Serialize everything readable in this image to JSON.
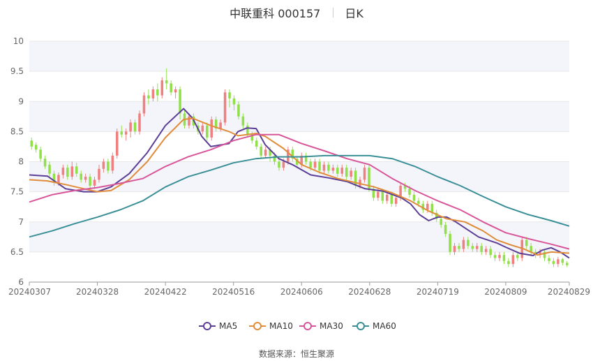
{
  "header": {
    "title": "中联重科 000157",
    "period": "日K"
  },
  "source_label": "数据来源：恒生聚源",
  "colors": {
    "up": "#f08080",
    "down": "#91e04a",
    "ma5": "#5b3e96",
    "ma10": "#e08c3a",
    "ma30": "#d8559a",
    "ma60": "#3a8f96",
    "band": "#f4f5fb",
    "grid": "#e8e8e8"
  },
  "chart_data": {
    "type": "candlestick",
    "title": "中联重科 000157",
    "subtitle": "日K",
    "xlabel": "",
    "ylabel": "",
    "ylim": [
      6,
      10
    ],
    "y_ticks": [
      6,
      6.5,
      7,
      7.5,
      8,
      8.5,
      9,
      9.5,
      10
    ],
    "y_tick_labels": [
      "6",
      "6.5",
      "7",
      "7.5",
      "8",
      "8.5",
      "9",
      "9.5",
      "10"
    ],
    "x_tick_labels": [
      "20240307",
      "20240328",
      "20240422",
      "20240516",
      "20240606",
      "20240628",
      "20240719",
      "20240809",
      "20240829"
    ],
    "x_tick_index": [
      0,
      15,
      30,
      45,
      60,
      75,
      90,
      105,
      119
    ],
    "legend_position": "bottom",
    "series": [
      {
        "name": "MA5",
        "points": [
          [
            0,
            7.78
          ],
          [
            4,
            7.76
          ],
          [
            8,
            7.55
          ],
          [
            12,
            7.5
          ],
          [
            15,
            7.5
          ],
          [
            18,
            7.58
          ],
          [
            22,
            7.8
          ],
          [
            26,
            8.15
          ],
          [
            30,
            8.6
          ],
          [
            34,
            8.88
          ],
          [
            36,
            8.72
          ],
          [
            38,
            8.42
          ],
          [
            40,
            8.25
          ],
          [
            44,
            8.3
          ],
          [
            46,
            8.5
          ],
          [
            48,
            8.56
          ],
          [
            50,
            8.55
          ],
          [
            52,
            8.28
          ],
          [
            55,
            8.05
          ],
          [
            58,
            7.95
          ],
          [
            62,
            7.78
          ],
          [
            66,
            7.73
          ],
          [
            70,
            7.67
          ],
          [
            74,
            7.55
          ],
          [
            78,
            7.51
          ],
          [
            82,
            7.4
          ],
          [
            84,
            7.3
          ],
          [
            86,
            7.12
          ],
          [
            88,
            7.02
          ],
          [
            90,
            7.08
          ],
          [
            92,
            7.08
          ],
          [
            94,
            7.0
          ],
          [
            96,
            6.9
          ],
          [
            99,
            6.75
          ],
          [
            103,
            6.65
          ],
          [
            105,
            6.58
          ],
          [
            108,
            6.48
          ],
          [
            111,
            6.44
          ],
          [
            113,
            6.53
          ],
          [
            115,
            6.57
          ],
          [
            117,
            6.5
          ],
          [
            119,
            6.4
          ]
        ]
      },
      {
        "name": "MA10",
        "points": [
          [
            0,
            7.7
          ],
          [
            4,
            7.68
          ],
          [
            8,
            7.62
          ],
          [
            12,
            7.55
          ],
          [
            15,
            7.5
          ],
          [
            18,
            7.52
          ],
          [
            22,
            7.7
          ],
          [
            26,
            8.0
          ],
          [
            30,
            8.4
          ],
          [
            34,
            8.7
          ],
          [
            36,
            8.72
          ],
          [
            40,
            8.6
          ],
          [
            44,
            8.5
          ],
          [
            46,
            8.43
          ],
          [
            48,
            8.45
          ],
          [
            50,
            8.47
          ],
          [
            52,
            8.42
          ],
          [
            56,
            8.22
          ],
          [
            60,
            7.95
          ],
          [
            64,
            7.82
          ],
          [
            68,
            7.72
          ],
          [
            72,
            7.65
          ],
          [
            76,
            7.58
          ],
          [
            80,
            7.48
          ],
          [
            84,
            7.35
          ],
          [
            88,
            7.18
          ],
          [
            92,
            7.05
          ],
          [
            96,
            7.0
          ],
          [
            100,
            6.85
          ],
          [
            103,
            6.7
          ],
          [
            106,
            6.62
          ],
          [
            109,
            6.55
          ],
          [
            112,
            6.45
          ],
          [
            115,
            6.5
          ],
          [
            119,
            6.48
          ]
        ]
      },
      {
        "name": "MA30",
        "points": [
          [
            0,
            7.33
          ],
          [
            5,
            7.45
          ],
          [
            10,
            7.52
          ],
          [
            15,
            7.57
          ],
          [
            20,
            7.64
          ],
          [
            25,
            7.72
          ],
          [
            30,
            7.92
          ],
          [
            35,
            8.08
          ],
          [
            40,
            8.2
          ],
          [
            45,
            8.35
          ],
          [
            50,
            8.45
          ],
          [
            55,
            8.45
          ],
          [
            60,
            8.3
          ],
          [
            65,
            8.18
          ],
          [
            70,
            8.05
          ],
          [
            75,
            7.95
          ],
          [
            80,
            7.72
          ],
          [
            85,
            7.52
          ],
          [
            90,
            7.35
          ],
          [
            95,
            7.2
          ],
          [
            100,
            7.0
          ],
          [
            105,
            6.82
          ],
          [
            110,
            6.72
          ],
          [
            115,
            6.63
          ],
          [
            119,
            6.55
          ]
        ]
      },
      {
        "name": "MA60",
        "points": [
          [
            0,
            6.75
          ],
          [
            5,
            6.85
          ],
          [
            10,
            6.97
          ],
          [
            15,
            7.08
          ],
          [
            20,
            7.2
          ],
          [
            25,
            7.35
          ],
          [
            30,
            7.58
          ],
          [
            35,
            7.75
          ],
          [
            40,
            7.86
          ],
          [
            45,
            7.98
          ],
          [
            50,
            8.05
          ],
          [
            55,
            8.08
          ],
          [
            60,
            8.08
          ],
          [
            65,
            8.1
          ],
          [
            70,
            8.1
          ],
          [
            75,
            8.1
          ],
          [
            80,
            8.05
          ],
          [
            85,
            7.92
          ],
          [
            90,
            7.75
          ],
          [
            95,
            7.6
          ],
          [
            100,
            7.42
          ],
          [
            105,
            7.25
          ],
          [
            110,
            7.12
          ],
          [
            115,
            7.02
          ],
          [
            119,
            6.93
          ]
        ]
      }
    ],
    "candles": [
      [
        8.35,
        8.25,
        8.4,
        8.2
      ],
      [
        8.28,
        8.2,
        8.32,
        8.15
      ],
      [
        8.2,
        8.05,
        8.25,
        8.0
      ],
      [
        8.05,
        7.92,
        8.1,
        7.88
      ],
      [
        7.95,
        7.8,
        8.0,
        7.75
      ],
      [
        7.8,
        7.65,
        7.85,
        7.6
      ],
      [
        7.65,
        7.78,
        7.82,
        7.6
      ],
      [
        7.78,
        7.9,
        7.95,
        7.72
      ],
      [
        7.9,
        7.75,
        7.95,
        7.7
      ],
      [
        7.75,
        7.92,
        8.0,
        7.7
      ],
      [
        7.92,
        7.8,
        7.98,
        7.75
      ],
      [
        7.8,
        7.7,
        7.85,
        7.65
      ],
      [
        7.7,
        7.75,
        7.8,
        7.65
      ],
      [
        7.75,
        7.6,
        7.8,
        7.55
      ],
      [
        7.6,
        7.7,
        7.75,
        7.55
      ],
      [
        7.7,
        7.88,
        7.95,
        7.65
      ],
      [
        7.88,
        8.0,
        8.05,
        7.82
      ],
      [
        8.0,
        7.85,
        8.05,
        7.8
      ],
      [
        7.85,
        8.1,
        8.15,
        7.8
      ],
      [
        8.1,
        8.5,
        8.55,
        8.05
      ],
      [
        8.5,
        8.45,
        8.6,
        8.4
      ],
      [
        8.45,
        8.5,
        8.55,
        8.35
      ],
      [
        8.5,
        8.65,
        8.7,
        8.4
      ],
      [
        8.65,
        8.5,
        8.7,
        8.45
      ],
      [
        8.5,
        8.8,
        8.85,
        8.45
      ],
      [
        8.8,
        9.1,
        9.15,
        8.75
      ],
      [
        9.1,
        9.05,
        9.2,
        8.95
      ],
      [
        9.05,
        9.2,
        9.25,
        9.0
      ],
      [
        9.2,
        9.1,
        9.3,
        9.0
      ],
      [
        9.1,
        9.35,
        9.4,
        9.05
      ],
      [
        9.35,
        9.3,
        9.55,
        9.2
      ],
      [
        9.3,
        9.15,
        9.35,
        9.1
      ],
      [
        9.15,
        9.2,
        9.25,
        9.05
      ],
      [
        9.2,
        8.8,
        9.25,
        8.7
      ],
      [
        8.8,
        8.6,
        8.85,
        8.55
      ],
      [
        8.6,
        8.75,
        8.8,
        8.55
      ],
      [
        8.75,
        8.6,
        8.8,
        8.55
      ],
      [
        8.6,
        8.5,
        8.65,
        8.45
      ],
      [
        8.5,
        8.6,
        8.65,
        8.45
      ],
      [
        8.6,
        8.4,
        8.65,
        8.35
      ],
      [
        8.4,
        8.7,
        8.75,
        8.35
      ],
      [
        8.7,
        8.55,
        8.75,
        8.5
      ],
      [
        8.55,
        8.65,
        8.7,
        8.5
      ],
      [
        8.65,
        9.15,
        9.2,
        8.6
      ],
      [
        9.15,
        9.05,
        9.2,
        8.9
      ],
      [
        9.05,
        8.95,
        9.1,
        8.85
      ],
      [
        8.95,
        8.75,
        9.0,
        8.7
      ],
      [
        8.75,
        8.6,
        8.8,
        8.55
      ],
      [
        8.6,
        8.45,
        8.65,
        8.4
      ],
      [
        8.45,
        8.35,
        8.5,
        8.3
      ],
      [
        8.35,
        8.25,
        8.4,
        8.2
      ],
      [
        8.25,
        8.1,
        8.3,
        8.05
      ],
      [
        8.1,
        8.2,
        8.25,
        8.05
      ],
      [
        8.2,
        8.1,
        8.25,
        8.0
      ],
      [
        8.1,
        8.0,
        8.15,
        7.95
      ],
      [
        8.0,
        7.9,
        8.05,
        7.85
      ],
      [
        7.9,
        8.0,
        8.05,
        7.85
      ],
      [
        8.0,
        8.2,
        8.25,
        7.95
      ],
      [
        8.2,
        8.05,
        8.25,
        8.0
      ],
      [
        8.05,
        7.95,
        8.1,
        7.9
      ],
      [
        7.95,
        8.1,
        8.15,
        7.9
      ],
      [
        8.1,
        8.0,
        8.15,
        7.95
      ],
      [
        8.0,
        7.9,
        8.05,
        7.85
      ],
      [
        7.9,
        8.0,
        8.05,
        7.85
      ],
      [
        8.0,
        7.85,
        8.05,
        7.8
      ],
      [
        7.85,
        7.95,
        8.0,
        7.8
      ],
      [
        7.95,
        7.85,
        8.0,
        7.8
      ],
      [
        7.85,
        7.9,
        7.95,
        7.8
      ],
      [
        7.9,
        7.8,
        7.95,
        7.75
      ],
      [
        7.8,
        7.9,
        7.95,
        7.75
      ],
      [
        7.9,
        7.75,
        7.95,
        7.7
      ],
      [
        7.75,
        7.85,
        7.9,
        7.7
      ],
      [
        7.85,
        7.6,
        7.9,
        7.55
      ],
      [
        7.6,
        7.7,
        7.75,
        7.55
      ],
      [
        7.7,
        7.9,
        7.95,
        7.65
      ],
      [
        7.9,
        7.55,
        7.95,
        7.5
      ],
      [
        7.55,
        7.4,
        7.6,
        7.35
      ],
      [
        7.4,
        7.5,
        7.55,
        7.35
      ],
      [
        7.5,
        7.35,
        7.55,
        7.3
      ],
      [
        7.35,
        7.45,
        7.5,
        7.3
      ],
      [
        7.45,
        7.3,
        7.5,
        7.25
      ],
      [
        7.3,
        7.4,
        7.45,
        7.25
      ],
      [
        7.4,
        7.6,
        7.65,
        7.35
      ],
      [
        7.6,
        7.55,
        7.65,
        7.5
      ],
      [
        7.55,
        7.45,
        7.6,
        7.4
      ],
      [
        7.45,
        7.35,
        7.5,
        7.3
      ],
      [
        7.35,
        7.3,
        7.4,
        7.25
      ],
      [
        7.3,
        7.2,
        7.35,
        7.15
      ],
      [
        7.2,
        7.3,
        7.35,
        7.15
      ],
      [
        7.3,
        7.15,
        7.35,
        7.1
      ],
      [
        7.15,
        7.05,
        7.2,
        7.0
      ],
      [
        7.05,
        6.95,
        7.1,
        6.9
      ],
      [
        6.95,
        6.8,
        7.0,
        6.75
      ],
      [
        6.8,
        6.5,
        6.85,
        6.45
      ],
      [
        6.5,
        6.6,
        6.65,
        6.45
      ],
      [
        6.6,
        6.55,
        6.65,
        6.5
      ],
      [
        6.55,
        6.7,
        6.75,
        6.5
      ],
      [
        6.7,
        6.6,
        6.75,
        6.55
      ],
      [
        6.6,
        6.55,
        6.65,
        6.5
      ],
      [
        6.55,
        6.6,
        6.65,
        6.5
      ],
      [
        6.6,
        6.5,
        6.65,
        6.45
      ],
      [
        6.5,
        6.55,
        6.6,
        6.45
      ],
      [
        6.55,
        6.45,
        6.6,
        6.4
      ],
      [
        6.45,
        6.4,
        6.5,
        6.35
      ],
      [
        6.4,
        6.45,
        6.5,
        6.35
      ],
      [
        6.45,
        6.35,
        6.5,
        6.3
      ],
      [
        6.35,
        6.3,
        6.4,
        6.25
      ],
      [
        6.3,
        6.45,
        6.5,
        6.25
      ],
      [
        6.45,
        6.4,
        6.5,
        6.35
      ],
      [
        6.4,
        6.7,
        6.75,
        6.35
      ],
      [
        6.7,
        6.6,
        6.75,
        6.55
      ],
      [
        6.6,
        6.5,
        6.65,
        6.45
      ],
      [
        6.5,
        6.45,
        6.55,
        6.4
      ],
      [
        6.45,
        6.5,
        6.55,
        6.4
      ],
      [
        6.5,
        6.4,
        6.55,
        6.35
      ],
      [
        6.4,
        6.35,
        6.45,
        6.3
      ],
      [
        6.35,
        6.3,
        6.4,
        6.25
      ],
      [
        6.3,
        6.38,
        6.42,
        6.25
      ],
      [
        6.38,
        6.32,
        6.4,
        6.28
      ],
      [
        6.32,
        6.28,
        6.35,
        6.25
      ]
    ]
  }
}
